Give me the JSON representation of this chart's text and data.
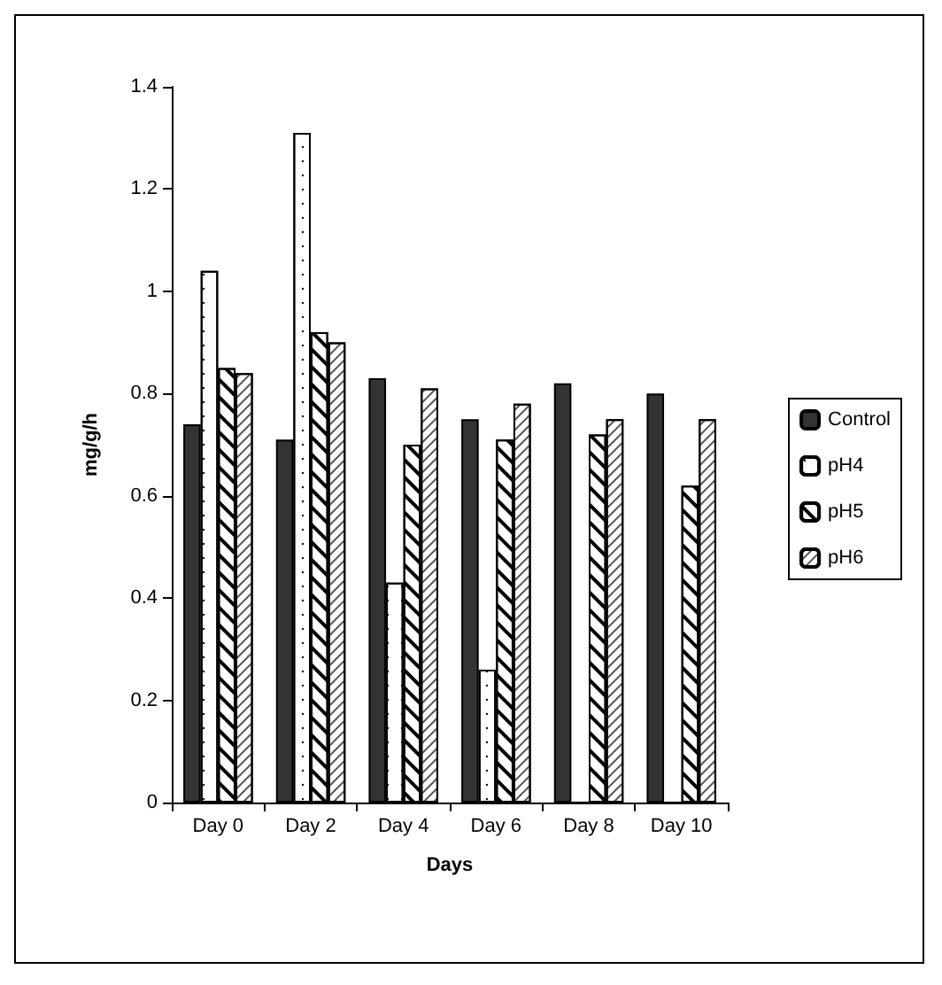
{
  "chart_data": {
    "type": "bar",
    "xlabel": "Days",
    "ylabel": "mg/g/h",
    "categories": [
      "Day 0",
      "Day 2",
      "Day 4",
      "Day 6",
      "Day 8",
      "Day 10"
    ],
    "series": [
      {
        "name": "Control",
        "color": "#333333",
        "values": [
          0.74,
          0.71,
          0.83,
          0.75,
          0.82,
          0.8
        ]
      },
      {
        "name": "pH4",
        "color": "#ffffff",
        "values": [
          1.04,
          1.31,
          0.43,
          0.26,
          0,
          0
        ]
      },
      {
        "name": "pH5",
        "color": "#ffffff",
        "values": [
          0.85,
          0.92,
          0.7,
          0.71,
          0.72,
          0.62
        ]
      },
      {
        "name": "pH6",
        "color": "#ffffff",
        "values": [
          0.84,
          0.9,
          0.81,
          0.78,
          0.75,
          0.75
        ]
      }
    ],
    "ylim": [
      0,
      1.4
    ],
    "yticks": [
      0,
      0.2,
      0.4,
      0.6,
      0.8,
      1,
      1.2,
      1.4
    ],
    "grid": false,
    "legend": "right"
  }
}
